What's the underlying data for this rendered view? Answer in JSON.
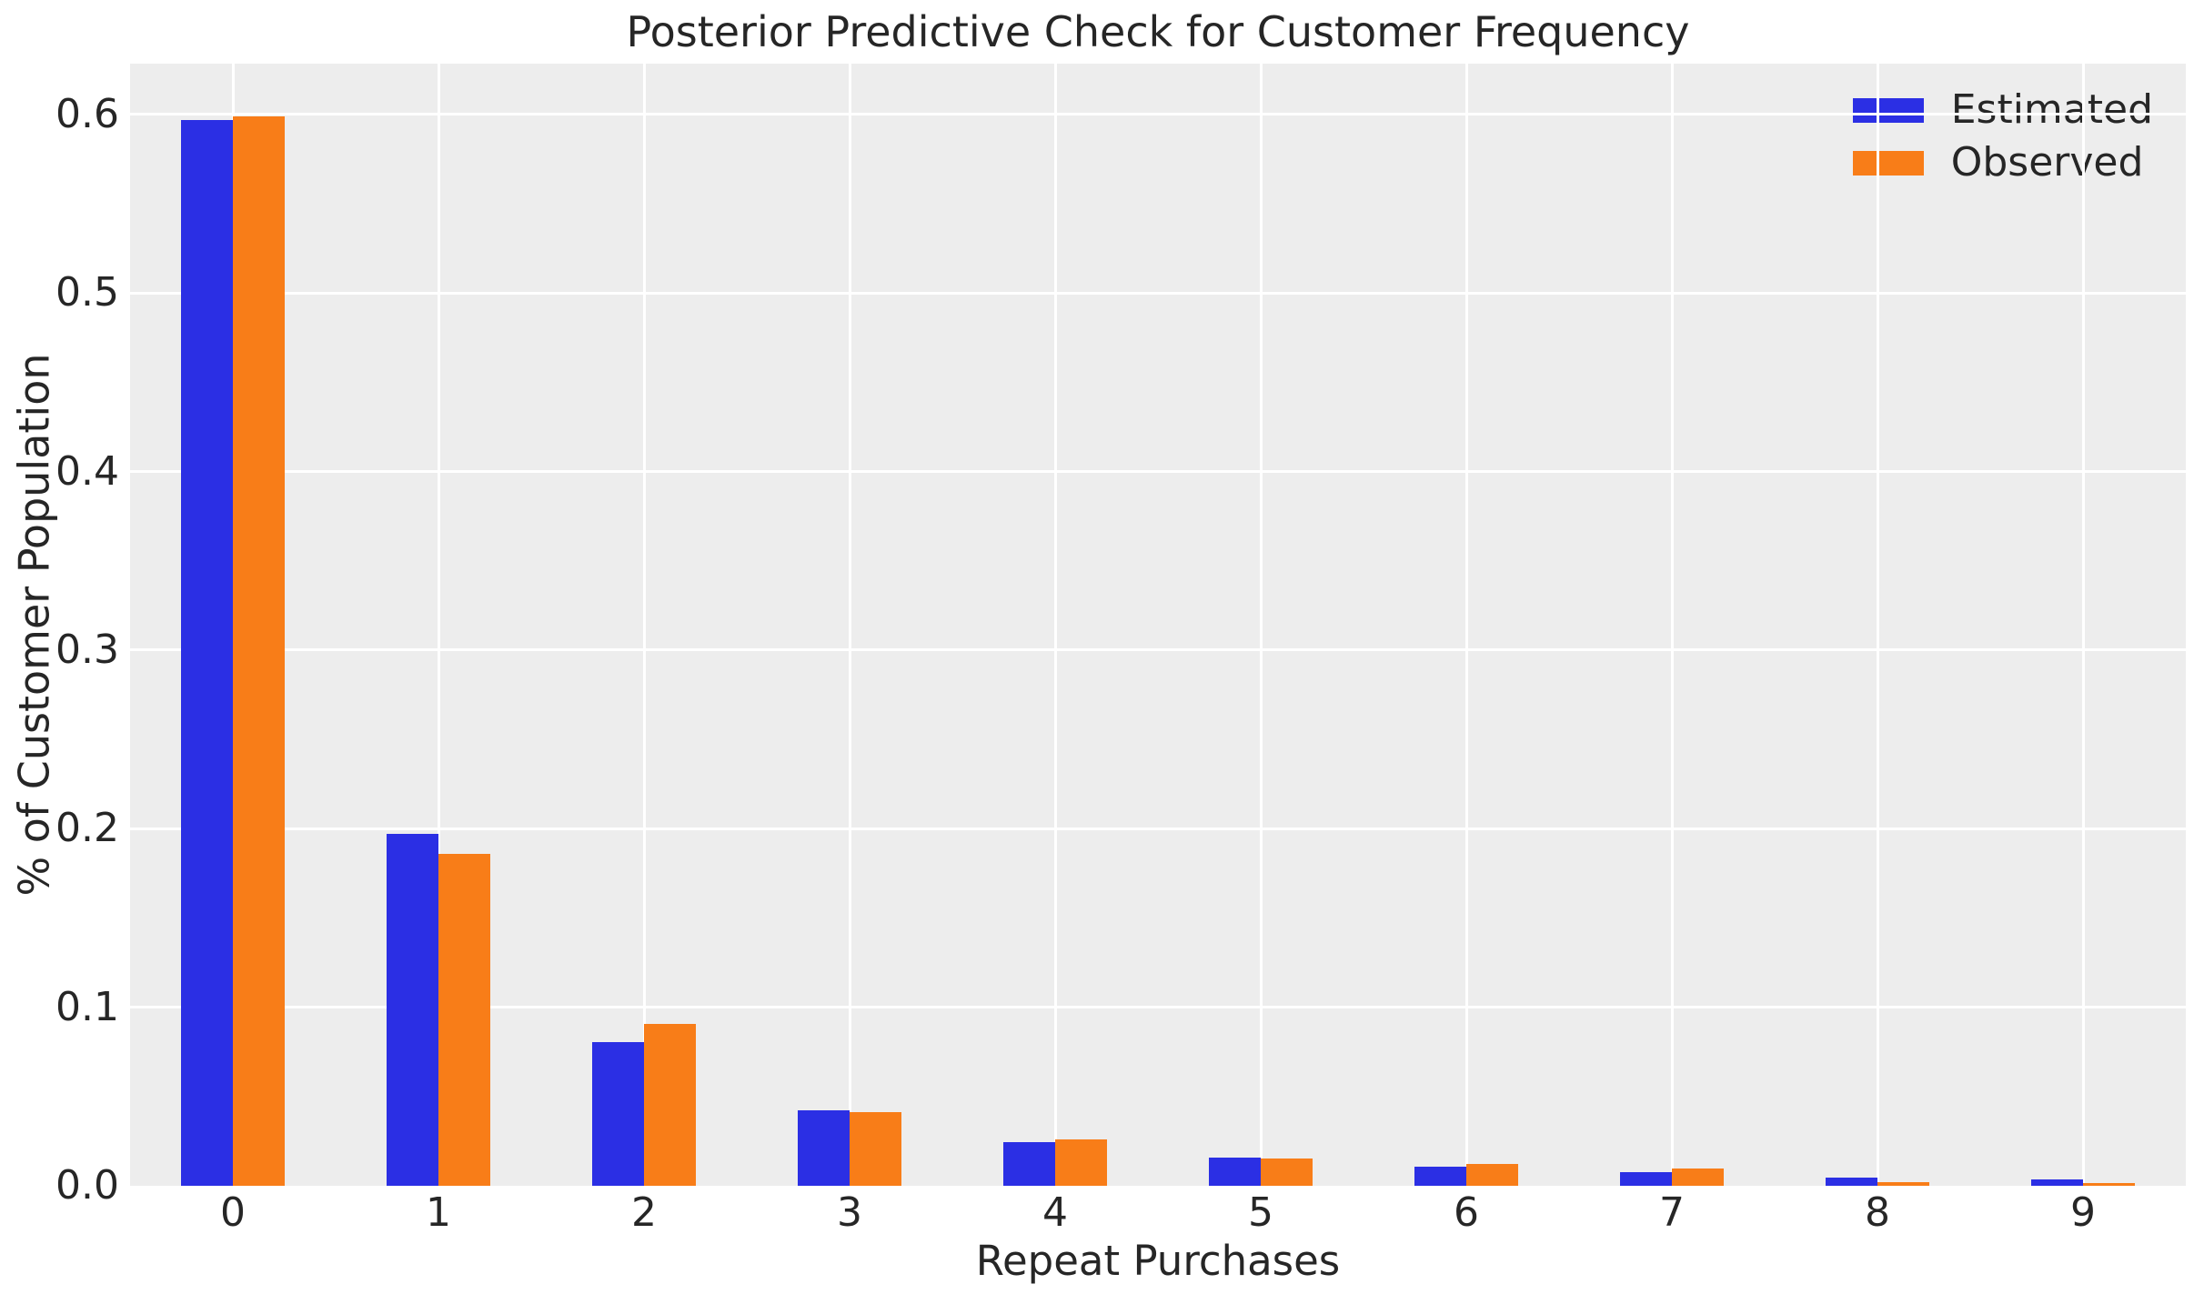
{
  "chart_data": {
    "type": "bar",
    "title": "Posterior Predictive Check for Customer Frequency",
    "xlabel": "Repeat Purchases",
    "ylabel": "% of Customer Population",
    "categories": [
      "0",
      "1",
      "2",
      "3",
      "4",
      "5",
      "6",
      "7",
      "8",
      "9"
    ],
    "series": [
      {
        "name": "Estimated",
        "color": "#2b2fe4",
        "values": [
          0.597,
          0.197,
          0.0805,
          0.0425,
          0.0245,
          0.0158,
          0.0107,
          0.0078,
          0.0048,
          0.0038
        ]
      },
      {
        "name": "Observed",
        "color": "#f87d18",
        "values": [
          0.599,
          0.186,
          0.0905,
          0.0415,
          0.0258,
          0.0151,
          0.012,
          0.0096,
          0.0021,
          0.0016
        ]
      }
    ],
    "yticks": [
      0.0,
      0.1,
      0.2,
      0.3,
      0.4,
      0.5,
      0.6
    ],
    "ylim": [
      0,
      0.6285
    ],
    "grid": true,
    "legend_position": "upper right",
    "plot_background": "#ededed",
    "grid_color": "#ffffff",
    "text_color": "#262626",
    "figure_background": "#ffffff"
  }
}
